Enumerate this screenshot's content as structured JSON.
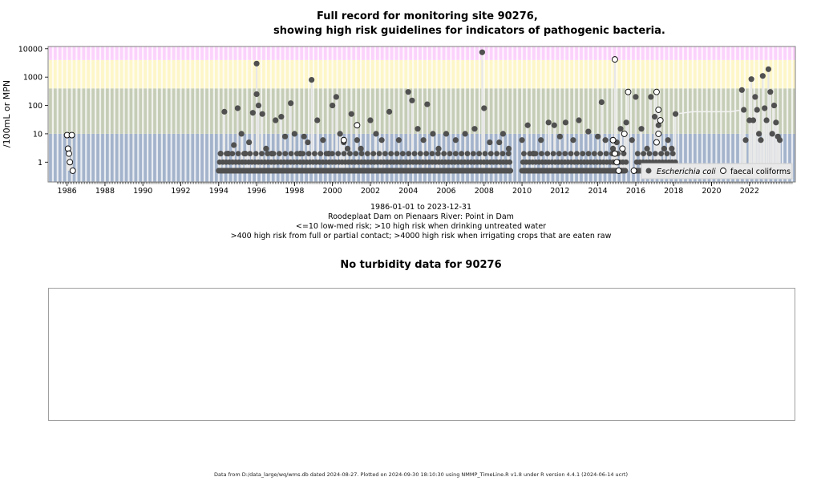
{
  "page": {
    "title_line1": "Full record for monitoring site 90276,",
    "title_line2": "showing high risk guidelines for indicators of pathogenic bacteria.",
    "subtitle": [
      "1986-01-01 to 2023-12-31",
      "Roodeplaat Dam on Pienaars River: Point in Dam",
      "<=10 low-med risk; >10 high risk when drinking untreated water",
      ">400 high risk from full or partial contact; >4000 high risk when irrigating crops that are eaten raw"
    ],
    "turbidity_title": "No turbidity data for 90276",
    "footer": "Data from D:/data_large/wq/wms.db dated 2024-08-27. Plotted on 2024-09-30 18:10:30 using NMMP_TimeLine.R v1.8 under R version 4.4.1 (2024-06-14 ucrt)"
  },
  "chart_data": {
    "type": "scatter",
    "title": "Full record for monitoring site 90276, showing high risk guidelines for indicators of pathogenic bacteria.",
    "ylabel": "/100mL or MPN",
    "y_scale": "log",
    "ylim": [
      0.2,
      12000
    ],
    "xlim": [
      "1985-01-01",
      "2024-06-01"
    ],
    "x_ticks": [
      "1986",
      "1988",
      "1990",
      "1992",
      "1994",
      "1996",
      "1998",
      "2000",
      "2002",
      "2004",
      "2006",
      "2008",
      "2010",
      "2012",
      "2014",
      "2016",
      "2018",
      "2020",
      "2022"
    ],
    "y_ticks": [
      "1",
      "10",
      "100",
      "1000",
      "10000"
    ],
    "y_tick_values": [
      1,
      10,
      100,
      1000,
      10000
    ],
    "bands": [
      {
        "from": 0.2,
        "to": 10,
        "color": "#a3b3cb"
      },
      {
        "from": 10,
        "to": 400,
        "color": "#c6cdb7"
      },
      {
        "from": 400,
        "to": 4000,
        "color": "#fdf6c8"
      },
      {
        "from": 4000,
        "to": 12000,
        "color": "#fbd2fb"
      }
    ],
    "legend": {
      "position": "bottom-right",
      "entries": [
        {
          "label": "Escherichia coli",
          "marker": "filled-circle",
          "color": "#505050"
        },
        {
          "label": "faecal coliforms",
          "marker": "open-circle",
          "color": "#000000"
        }
      ]
    },
    "series": [
      {
        "name": "Escherichia coli",
        "color": "#505050",
        "base_value": 0.5,
        "base_runs": [
          [
            1994.0,
            2009.4
          ],
          [
            2010.0,
            2015.5
          ],
          [
            2016.0,
            2018.1
          ]
        ],
        "points": [
          [
            1994.1,
            2
          ],
          [
            1994.3,
            60
          ],
          [
            1994.5,
            2
          ],
          [
            1994.8,
            4
          ],
          [
            1995.0,
            80
          ],
          [
            1995.2,
            10
          ],
          [
            1995.4,
            2
          ],
          [
            1995.6,
            5
          ],
          [
            1995.8,
            55
          ],
          [
            1996.0,
            250
          ],
          [
            1996.0,
            3000
          ],
          [
            1996.1,
            100
          ],
          [
            1996.3,
            50
          ],
          [
            1996.5,
            3
          ],
          [
            1996.8,
            2
          ],
          [
            1997.0,
            30
          ],
          [
            1997.3,
            40
          ],
          [
            1997.5,
            8
          ],
          [
            1997.8,
            120
          ],
          [
            1998.0,
            10
          ],
          [
            1998.3,
            2
          ],
          [
            1998.5,
            8
          ],
          [
            1998.7,
            5
          ],
          [
            1998.9,
            800
          ],
          [
            1999.2,
            30
          ],
          [
            1999.5,
            6
          ],
          [
            1999.8,
            2
          ],
          [
            2000.0,
            100
          ],
          [
            2000.2,
            200
          ],
          [
            2000.4,
            10
          ],
          [
            2000.6,
            5
          ],
          [
            2000.8,
            3
          ],
          [
            2001.0,
            50
          ],
          [
            2001.3,
            6
          ],
          [
            2001.5,
            3
          ],
          [
            2002.0,
            30
          ],
          [
            2002.3,
            10
          ],
          [
            2002.6,
            6
          ],
          [
            2003.0,
            60
          ],
          [
            2003.5,
            6
          ],
          [
            2004.0,
            300
          ],
          [
            2004.2,
            150
          ],
          [
            2004.5,
            15
          ],
          [
            2004.8,
            6
          ],
          [
            2005.0,
            110
          ],
          [
            2005.3,
            10
          ],
          [
            2005.6,
            3
          ],
          [
            2006.0,
            10
          ],
          [
            2006.5,
            6
          ],
          [
            2007.0,
            10
          ],
          [
            2007.5,
            15
          ],
          [
            2007.9,
            7500
          ],
          [
            2008.0,
            80
          ],
          [
            2008.3,
            5
          ],
          [
            2008.8,
            5
          ],
          [
            2009.0,
            10
          ],
          [
            2009.3,
            3
          ],
          [
            2010.0,
            6
          ],
          [
            2010.3,
            20
          ],
          [
            2010.6,
            2
          ],
          [
            2011.0,
            6
          ],
          [
            2011.4,
            25
          ],
          [
            2011.7,
            20
          ],
          [
            2012.0,
            8
          ],
          [
            2012.3,
            25
          ],
          [
            2012.7,
            6
          ],
          [
            2013.0,
            30
          ],
          [
            2013.5,
            12
          ],
          [
            2014.0,
            8
          ],
          [
            2014.2,
            130
          ],
          [
            2014.4,
            6
          ],
          [
            2014.8,
            3
          ],
          [
            2015.0,
            5
          ],
          [
            2015.2,
            15
          ],
          [
            2015.5,
            25
          ],
          [
            2015.8,
            6
          ],
          [
            2016.0,
            200
          ],
          [
            2016.3,
            15
          ],
          [
            2016.6,
            3
          ],
          [
            2016.8,
            200
          ],
          [
            2017.0,
            40
          ],
          [
            2017.2,
            20
          ],
          [
            2017.5,
            3
          ],
          [
            2017.7,
            6
          ],
          [
            2017.9,
            3
          ],
          [
            2018.1,
            50
          ],
          [
            2021.6,
            350
          ],
          [
            2021.7,
            70
          ],
          [
            2021.8,
            6
          ],
          [
            2022.0,
            30
          ],
          [
            2022.1,
            850
          ],
          [
            2022.2,
            30
          ],
          [
            2022.3,
            200
          ],
          [
            2022.4,
            70
          ],
          [
            2022.5,
            10
          ],
          [
            2022.6,
            6
          ],
          [
            2022.7,
            1100
          ],
          [
            2022.8,
            80
          ],
          [
            2022.9,
            30
          ],
          [
            2023.0,
            1900
          ],
          [
            2023.1,
            300
          ],
          [
            2023.2,
            10
          ],
          [
            2023.3,
            100
          ],
          [
            2023.4,
            25
          ],
          [
            2023.5,
            8
          ],
          [
            2023.6,
            6
          ]
        ]
      },
      {
        "name": "faecal coliforms",
        "color": "#000000",
        "points": [
          [
            1986.0,
            9
          ],
          [
            1986.05,
            3
          ],
          [
            1986.1,
            2
          ],
          [
            1986.15,
            1
          ],
          [
            1986.25,
            9
          ],
          [
            1986.3,
            0.5
          ],
          [
            2000.6,
            6
          ],
          [
            2001.3,
            20
          ],
          [
            2014.9,
            4200
          ],
          [
            2014.8,
            6
          ],
          [
            2014.9,
            2
          ],
          [
            2015.0,
            1
          ],
          [
            2015.1,
            0.5
          ],
          [
            2015.3,
            3
          ],
          [
            2015.4,
            10
          ],
          [
            2015.6,
            300
          ],
          [
            2015.9,
            0.5
          ],
          [
            2017.1,
            300
          ],
          [
            2017.2,
            70
          ],
          [
            2017.3,
            30
          ],
          [
            2017.2,
            10
          ],
          [
            2017.1,
            5
          ]
        ]
      }
    ]
  }
}
